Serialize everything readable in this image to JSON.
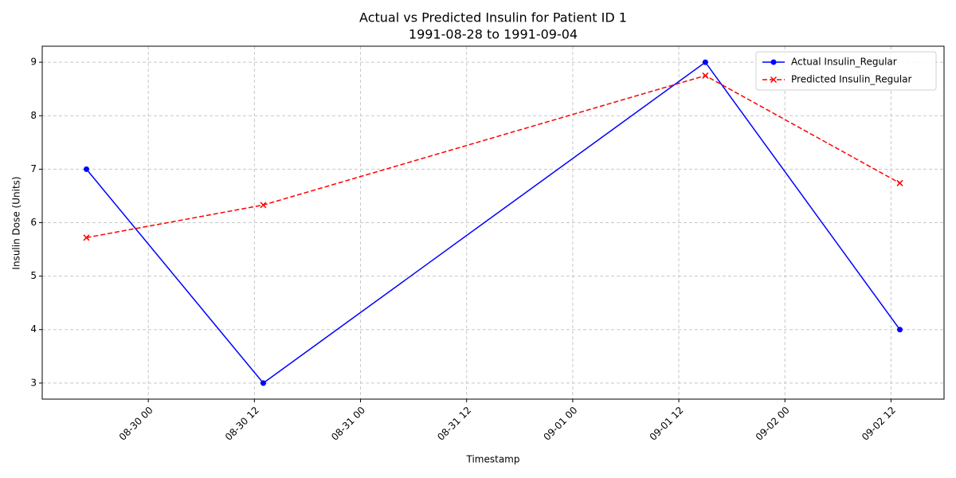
{
  "chart_data": {
    "type": "line",
    "title": "Actual vs Predicted Insulin for Patient ID 1",
    "subtitle": "1991-08-28 to 1991-09-04",
    "x_label": "Timestamp",
    "y_label": "Insulin Dose (Units)",
    "x": [
      "08-29 17",
      "08-30 13",
      "09-01 15",
      "09-02 13"
    ],
    "series": [
      {
        "name": "Actual Insulin_Regular",
        "color": "#0000ff",
        "marker": "circle",
        "dash": false,
        "values": [
          7,
          3,
          9,
          4
        ]
      },
      {
        "name": "Predicted Insulin_Regular",
        "color": "#ff0000",
        "marker": "x",
        "dash": true,
        "values": [
          5.72,
          6.33,
          8.75,
          6.74
        ]
      }
    ],
    "xlim": [
      "08-29 12",
      "09-02 18"
    ],
    "xticks": [
      "08-30 00",
      "08-30 12",
      "08-31 00",
      "08-31 12",
      "09-01 00",
      "09-01 12",
      "09-02 00",
      "09-02 12"
    ],
    "ylim": [
      2.7,
      9.3
    ],
    "yticks": [
      3,
      4,
      5,
      6,
      7,
      8,
      9
    ],
    "grid": true,
    "legend": "upper-right"
  }
}
